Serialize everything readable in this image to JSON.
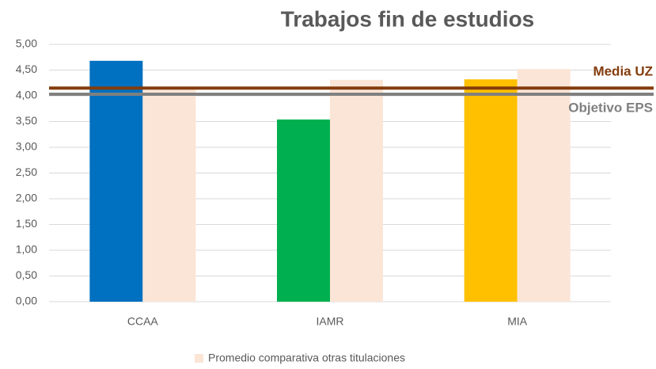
{
  "chart_data": {
    "type": "bar",
    "title": "Trabajos fin de estudios",
    "categories": [
      "CCAA",
      "IAMR",
      "MIA"
    ],
    "series": [
      {
        "colors": [
          "#0070c0",
          "#00b050",
          "#ffc000"
        ],
        "values": [
          4.68,
          3.54,
          4.32
        ]
      },
      {
        "name": "Promedio comparativa otras titulaciones",
        "color": "#fbe5d6",
        "values": [
          4.12,
          4.31,
          4.52
        ]
      }
    ],
    "reference_lines": [
      {
        "label": "Media UZ",
        "value": 4.15,
        "color": "#843c0c"
      },
      {
        "label": "Objetivo EPS",
        "value": 4.03,
        "color": "#808080"
      }
    ],
    "ylim": [
      0,
      5
    ],
    "yticks": [
      {
        "value": 0,
        "label": "0,00"
      },
      {
        "value": 0.5,
        "label": "0,50"
      },
      {
        "value": 1,
        "label": "1,00"
      },
      {
        "value": 1.5,
        "label": "1,50"
      },
      {
        "value": 2,
        "label": "2,00"
      },
      {
        "value": 2.5,
        "label": "2,50"
      },
      {
        "value": 3,
        "label": "3,00"
      },
      {
        "value": 3.5,
        "label": "3,50"
      },
      {
        "value": 4,
        "label": "4,00"
      },
      {
        "value": 4.5,
        "label": "4,50"
      },
      {
        "value": 5,
        "label": "5,00"
      }
    ],
    "grid": true
  }
}
